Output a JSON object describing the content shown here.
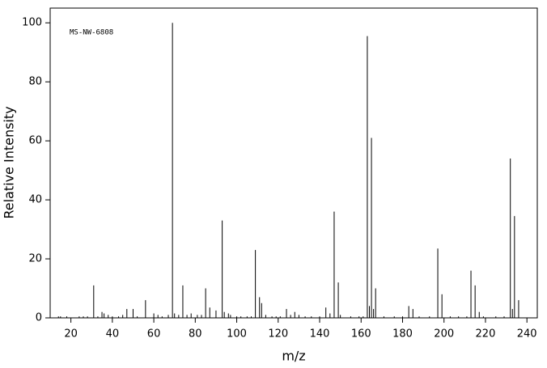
{
  "chart_data": {
    "type": "stem",
    "annotation": "MS-NW-6808",
    "xlabel": "m/z",
    "ylabel": "Relative Intensity",
    "x": [
      14,
      15,
      18,
      24,
      26,
      28,
      31,
      33,
      35,
      36,
      38,
      40,
      43,
      45,
      47,
      50,
      52,
      56,
      60,
      62,
      64,
      67,
      69,
      70,
      72,
      74,
      76,
      78,
      81,
      83,
      85,
      87,
      90,
      93,
      94,
      96,
      97,
      100,
      102,
      105,
      107,
      109,
      111,
      112,
      114,
      117,
      119,
      121,
      124,
      126,
      128,
      130,
      133,
      136,
      140,
      143,
      145,
      147,
      149,
      150,
      155,
      159,
      161,
      163,
      164,
      165,
      166,
      167,
      171,
      176,
      180,
      183,
      185,
      188,
      193,
      197,
      199,
      203,
      207,
      211,
      213,
      215,
      217,
      219,
      225,
      229,
      232,
      233,
      234,
      236
    ],
    "values": [
      0.5,
      0.5,
      0.5,
      0.5,
      0.5,
      0.5,
      11,
      0.5,
      2,
      1.5,
      1,
      0.5,
      0.5,
      1,
      3,
      3,
      0.5,
      6,
      1.5,
      1,
      0.5,
      1,
      100,
      1.5,
      1,
      11,
      1,
      1.5,
      1,
      1,
      10,
      3.5,
      2.5,
      33,
      2,
      1.5,
      1,
      0.5,
      0.5,
      0.5,
      0.5,
      23,
      7,
      5,
      1,
      0.5,
      0.5,
      0.5,
      3,
      1,
      2,
      1,
      0.5,
      0.5,
      0.5,
      3.5,
      1.5,
      36,
      12,
      1,
      0.5,
      0.5,
      0.5,
      95.5,
      4,
      61,
      3,
      10,
      0.5,
      0.5,
      0.5,
      4,
      3,
      0.5,
      0.5,
      23.5,
      8,
      0.5,
      0.5,
      0.5,
      16,
      11,
      2,
      0.5,
      0.5,
      0.5,
      54,
      3,
      34.5,
      6
    ],
    "color": "#000000",
    "xlim": [
      10,
      245
    ],
    "ylim": [
      0,
      105
    ],
    "xticks": [
      20,
      40,
      60,
      80,
      100,
      120,
      140,
      160,
      180,
      200,
      220,
      240
    ],
    "yticks": [
      0,
      20,
      40,
      60,
      80,
      100
    ]
  }
}
